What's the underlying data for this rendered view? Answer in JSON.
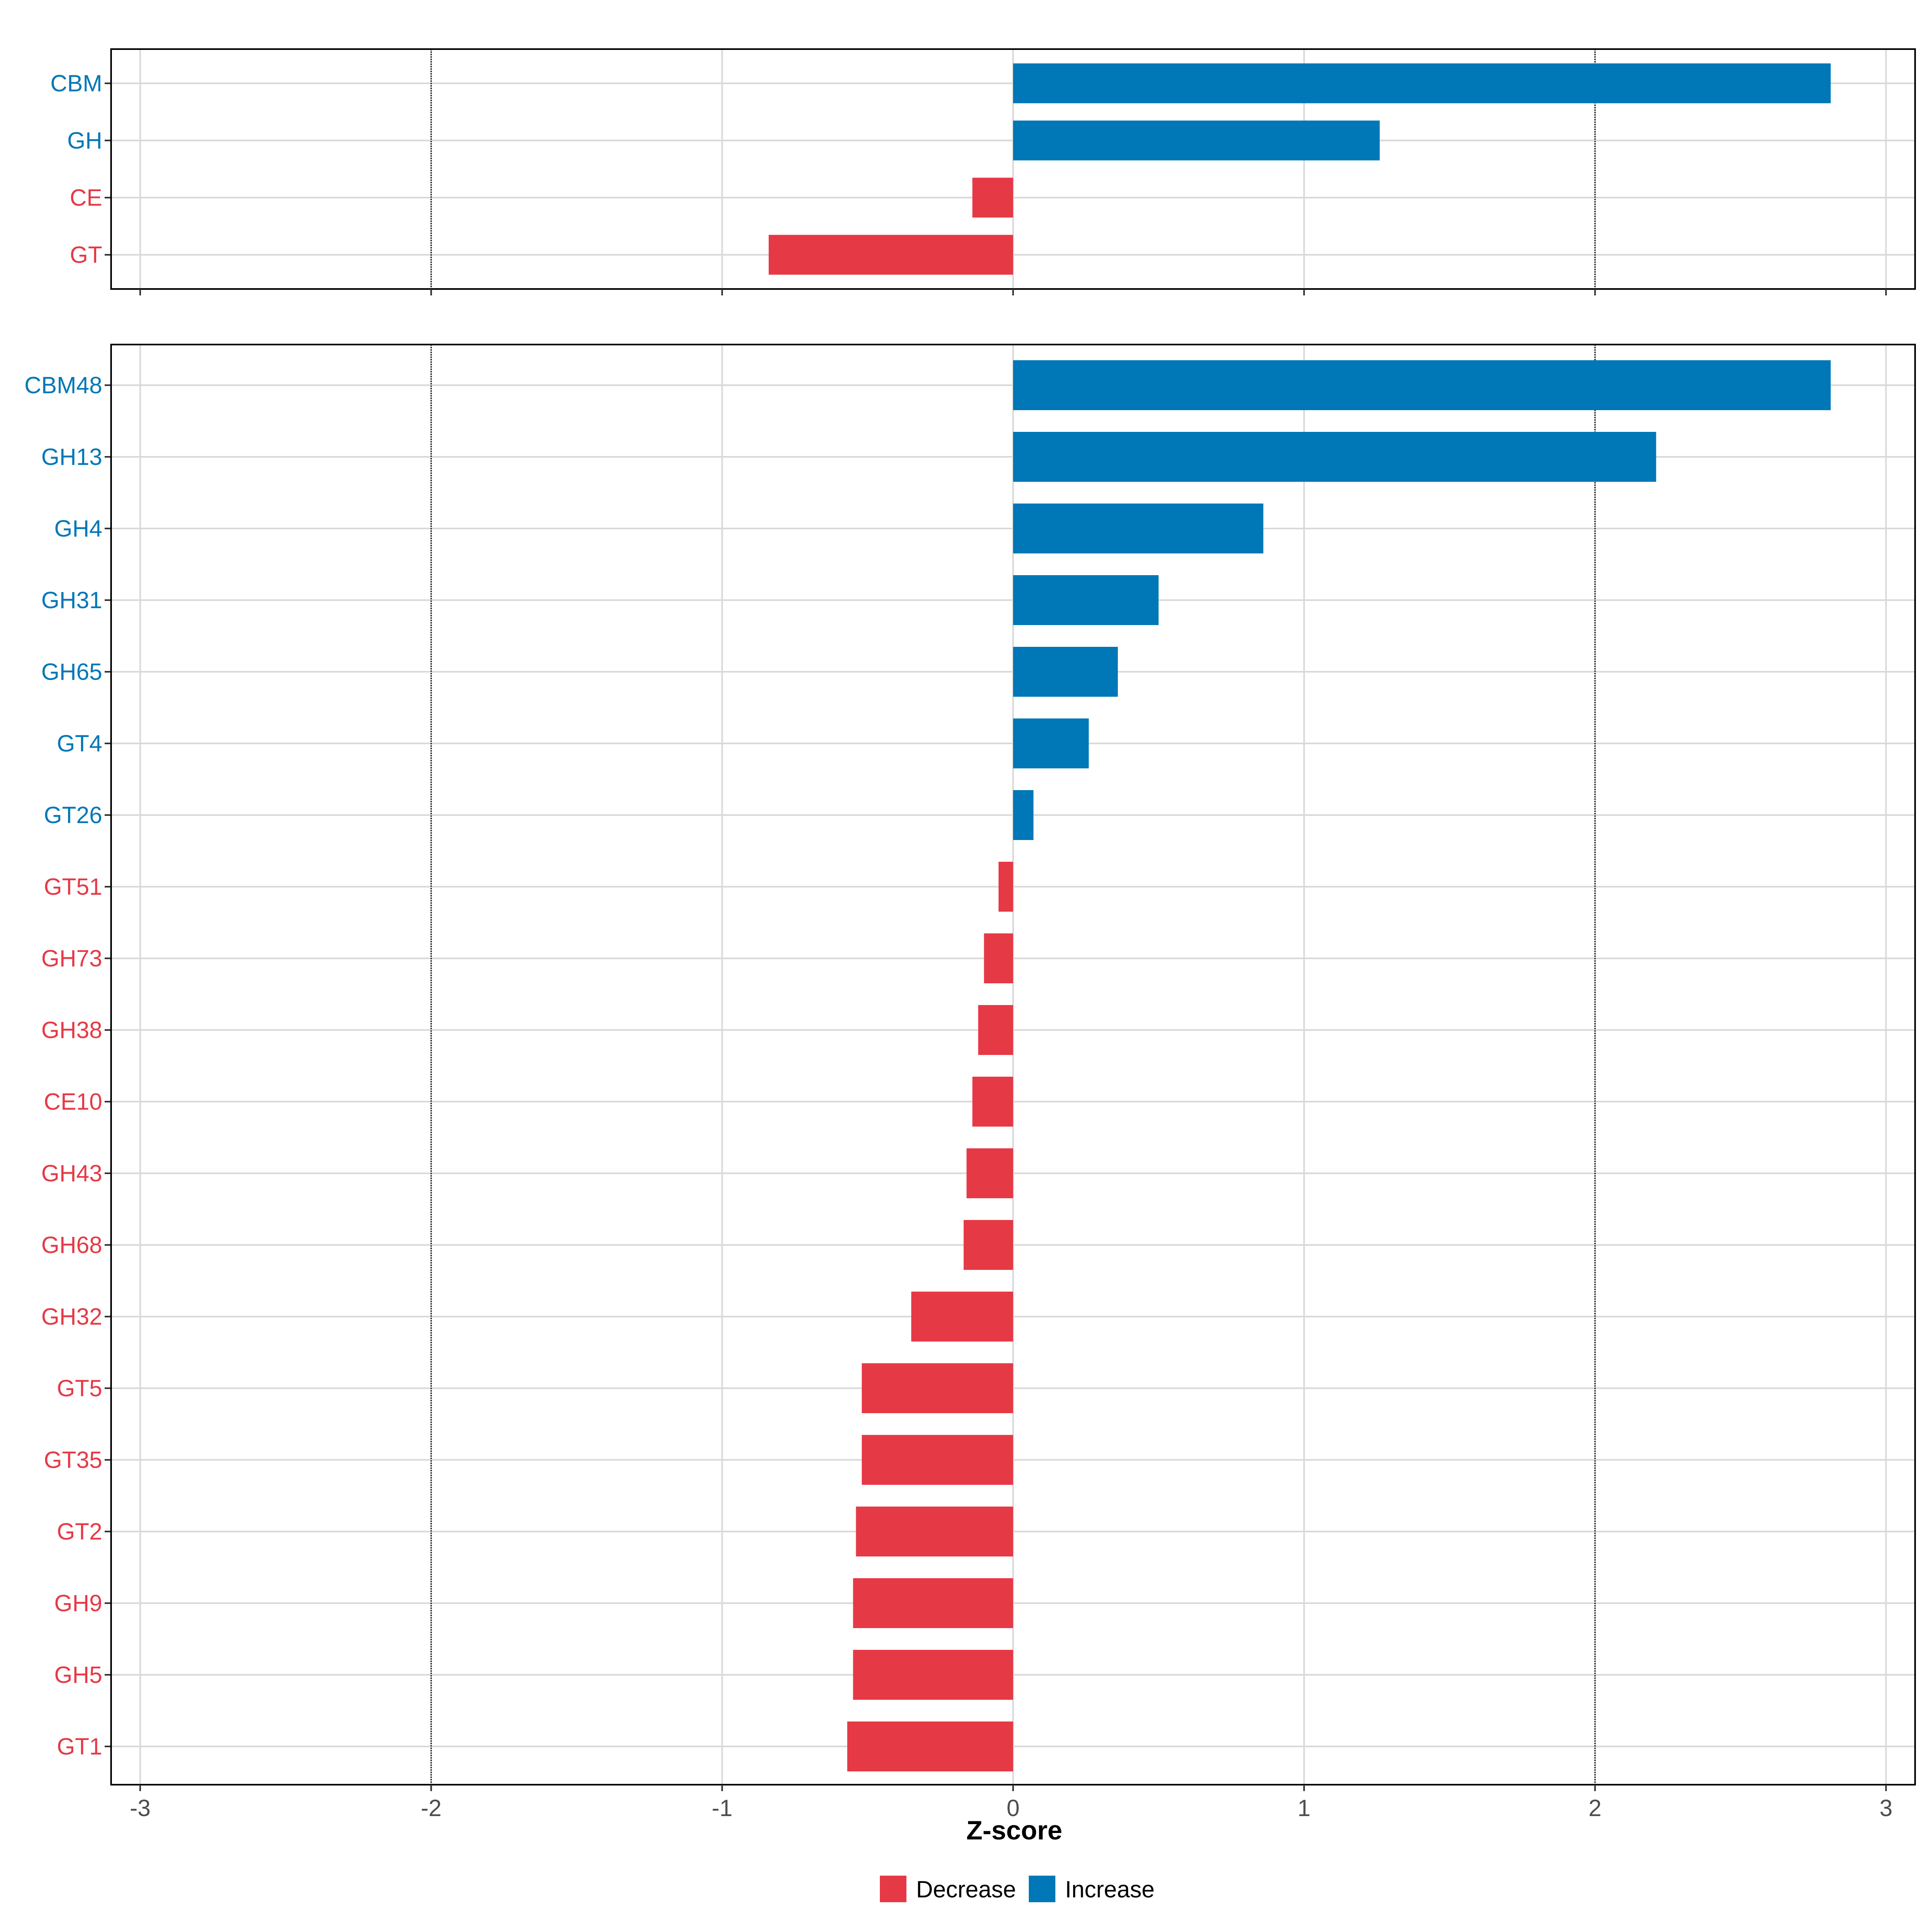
{
  "colors": {
    "decrease": "#E63946",
    "increase": "#0077B6",
    "grid": "#D9D9D9",
    "axis_text": "#4D4D4D"
  },
  "chart_data": [
    {
      "type": "bar",
      "orientation": "horizontal",
      "panel": "top",
      "categories": [
        "CBM",
        "GH",
        "CE",
        "GT"
      ],
      "values": [
        2.81,
        1.26,
        -0.14,
        -0.84
      ],
      "xlim": [
        -3.1,
        3.1
      ],
      "xticks": [
        -3,
        -2,
        -1,
        0,
        1,
        2,
        3
      ],
      "reference_lines": [
        -2,
        2
      ],
      "grid": true
    },
    {
      "type": "bar",
      "orientation": "horizontal",
      "panel": "bottom",
      "categories": [
        "CBM48",
        "GH13",
        "GH4",
        "GH31",
        "GH65",
        "GT4",
        "GT26",
        "GT51",
        "GH73",
        "GH38",
        "CE10",
        "GH43",
        "GH68",
        "GH32",
        "GT5",
        "GT35",
        "GT2",
        "GH9",
        "GH5",
        "GT1"
      ],
      "values": [
        2.81,
        2.21,
        0.86,
        0.5,
        0.36,
        0.26,
        0.07,
        -0.05,
        -0.1,
        -0.12,
        -0.14,
        -0.16,
        -0.17,
        -0.35,
        -0.52,
        -0.52,
        -0.54,
        -0.55,
        -0.55,
        -0.57
      ],
      "xlim": [
        -3.1,
        3.1
      ],
      "xticks": [
        -3,
        -2,
        -1,
        0,
        1,
        2,
        3
      ],
      "reference_lines": [
        -2,
        2
      ],
      "grid": true
    }
  ],
  "xlabel": "Z-score",
  "legend": {
    "position": "bottom",
    "items": [
      {
        "label": "Decrease",
        "color_key": "decrease"
      },
      {
        "label": "Increase",
        "color_key": "increase"
      }
    ]
  }
}
